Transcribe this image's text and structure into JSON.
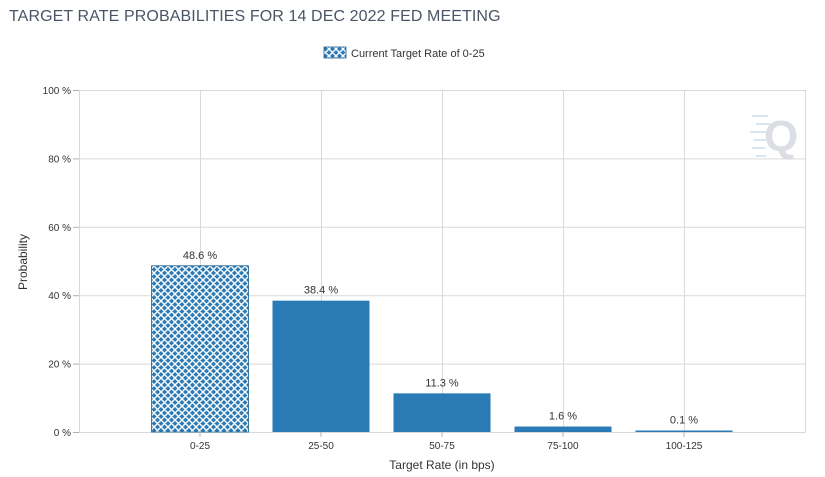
{
  "chart_data": {
    "type": "bar",
    "title": "TARGET RATE PROBABILITIES FOR 14 DEC 2022 FED MEETING",
    "xlabel": "Target Rate (in bps)",
    "ylabel": "Probability",
    "categories": [
      "0-25",
      "25-50",
      "50-75",
      "75-100",
      "100-125"
    ],
    "values": [
      48.6,
      38.4,
      11.3,
      1.6,
      0.1
    ],
    "data_labels": [
      "48.6 %",
      "38.4 %",
      "11.3 %",
      "1.6 %",
      "0.1 %"
    ],
    "ylim": [
      0,
      100
    ],
    "yticks": [
      0,
      20,
      40,
      60,
      80,
      100
    ],
    "ytick_labels": [
      "0 %",
      "20 %",
      "40 %",
      "60 %",
      "80 %",
      "100 %"
    ],
    "highlighted_category": "0-25",
    "legend": {
      "placement": "top-center",
      "entries": [
        "Current Target Rate of 0-25"
      ]
    },
    "grid": true,
    "colors": {
      "bar": "#2a7ab5",
      "highlight_fill": "#2a7ab5",
      "grid": "#d9d9d9",
      "title": "#4a5566"
    }
  }
}
